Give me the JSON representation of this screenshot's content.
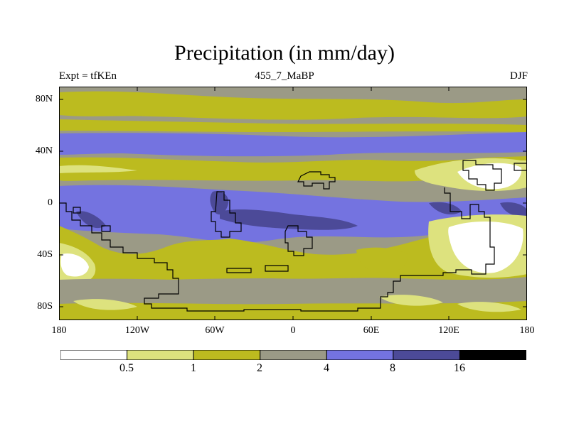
{
  "header": {
    "title": "Precipitation (in mm/day)",
    "left": "Expt = tfKEn",
    "center": "455_7_MaBP",
    "right": "DJF"
  },
  "axes": {
    "y_ticks": [
      "80N",
      "40N",
      "0",
      "40S",
      "80S"
    ],
    "x_ticks": [
      "180",
      "120W",
      "60W",
      "0",
      "60E",
      "120E",
      "180"
    ]
  },
  "colorbar": {
    "labels": [
      "0.5",
      "1",
      "2",
      "4",
      "8",
      "16"
    ],
    "colors": [
      "#ffffff",
      "#dde27e",
      "#bcbb1f",
      "#9b9a86",
      "#7473e0",
      "#4c4a98",
      "#000000"
    ]
  }
}
